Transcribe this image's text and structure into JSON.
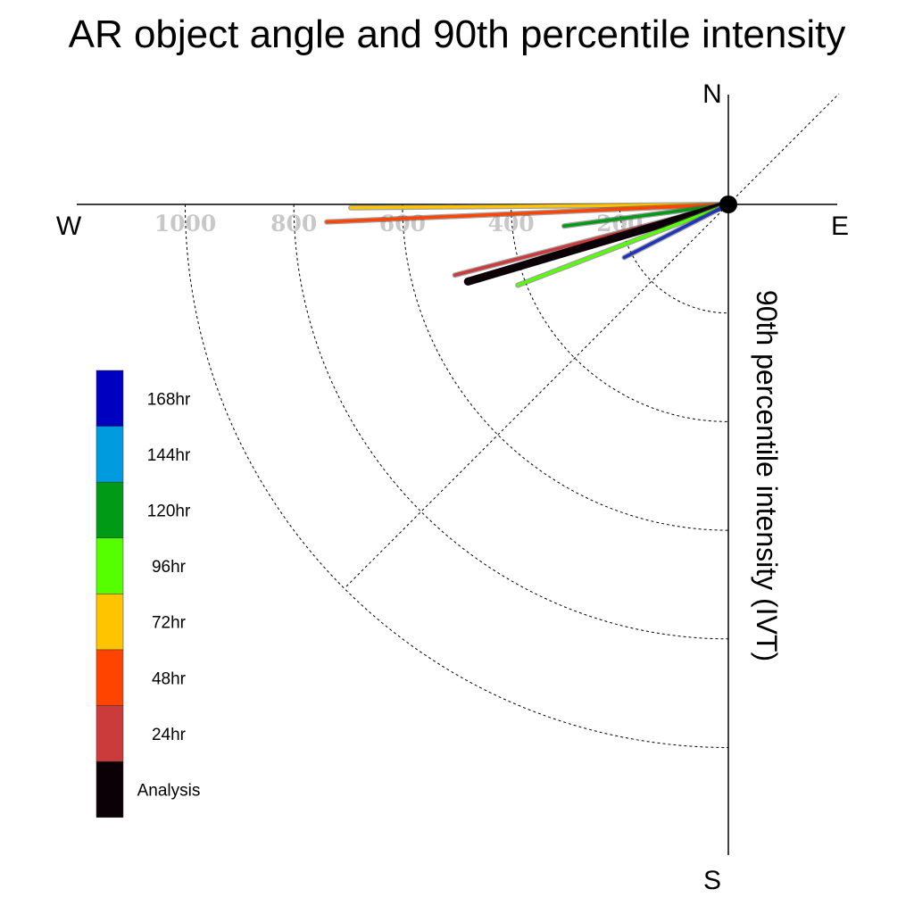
{
  "title": "AR object angle and 90th percentile intensity",
  "chart_data": {
    "type": "polar-vector",
    "title": "AR object angle and 90th percentile intensity",
    "ylabel": "90th percentile intensity (IVT)",
    "compass": {
      "north": "N",
      "south": "S",
      "east": "E",
      "west": "W"
    },
    "radial_range": [
      0,
      1000
    ],
    "radial_ticks": [
      200,
      400,
      600,
      800,
      1000
    ],
    "tick_labels": [
      "200",
      "400",
      "600",
      "800",
      "1000"
    ],
    "series": [
      {
        "name": "72hr",
        "color": "#ffc400",
        "intensity": 695,
        "angle_deg": 180.5
      },
      {
        "name": "48hr",
        "color": "#ff4400",
        "intensity": 740,
        "angle_deg": 182.5
      },
      {
        "name": "120hr",
        "color": "#009a17",
        "intensity": 305,
        "angle_deg": 187.5
      },
      {
        "name": "24hr",
        "color": "#cc3b3b",
        "intensity": 520,
        "angle_deg": 194.5
      },
      {
        "name": "Analysis",
        "color": "#0a0006",
        "intensity": 500,
        "angle_deg": 196.5
      },
      {
        "name": "96hr",
        "color": "#55ff00",
        "intensity": 415,
        "angle_deg": 201
      },
      {
        "name": "168hr",
        "color": "#2233bb",
        "intensity": 215,
        "angle_deg": 207
      }
    ],
    "legend": [
      {
        "label": "168hr",
        "color": "#0000c0"
      },
      {
        "label": "144hr",
        "color": "#009ade"
      },
      {
        "label": "120hr",
        "color": "#009a17"
      },
      {
        "label": "96hr",
        "color": "#55ff00"
      },
      {
        "label": "72hr",
        "color": "#ffc400"
      },
      {
        "label": "48hr",
        "color": "#ff4400"
      },
      {
        "label": "24hr",
        "color": "#cc3b3b"
      },
      {
        "label": "Analysis",
        "color": "#0a0006"
      }
    ]
  }
}
